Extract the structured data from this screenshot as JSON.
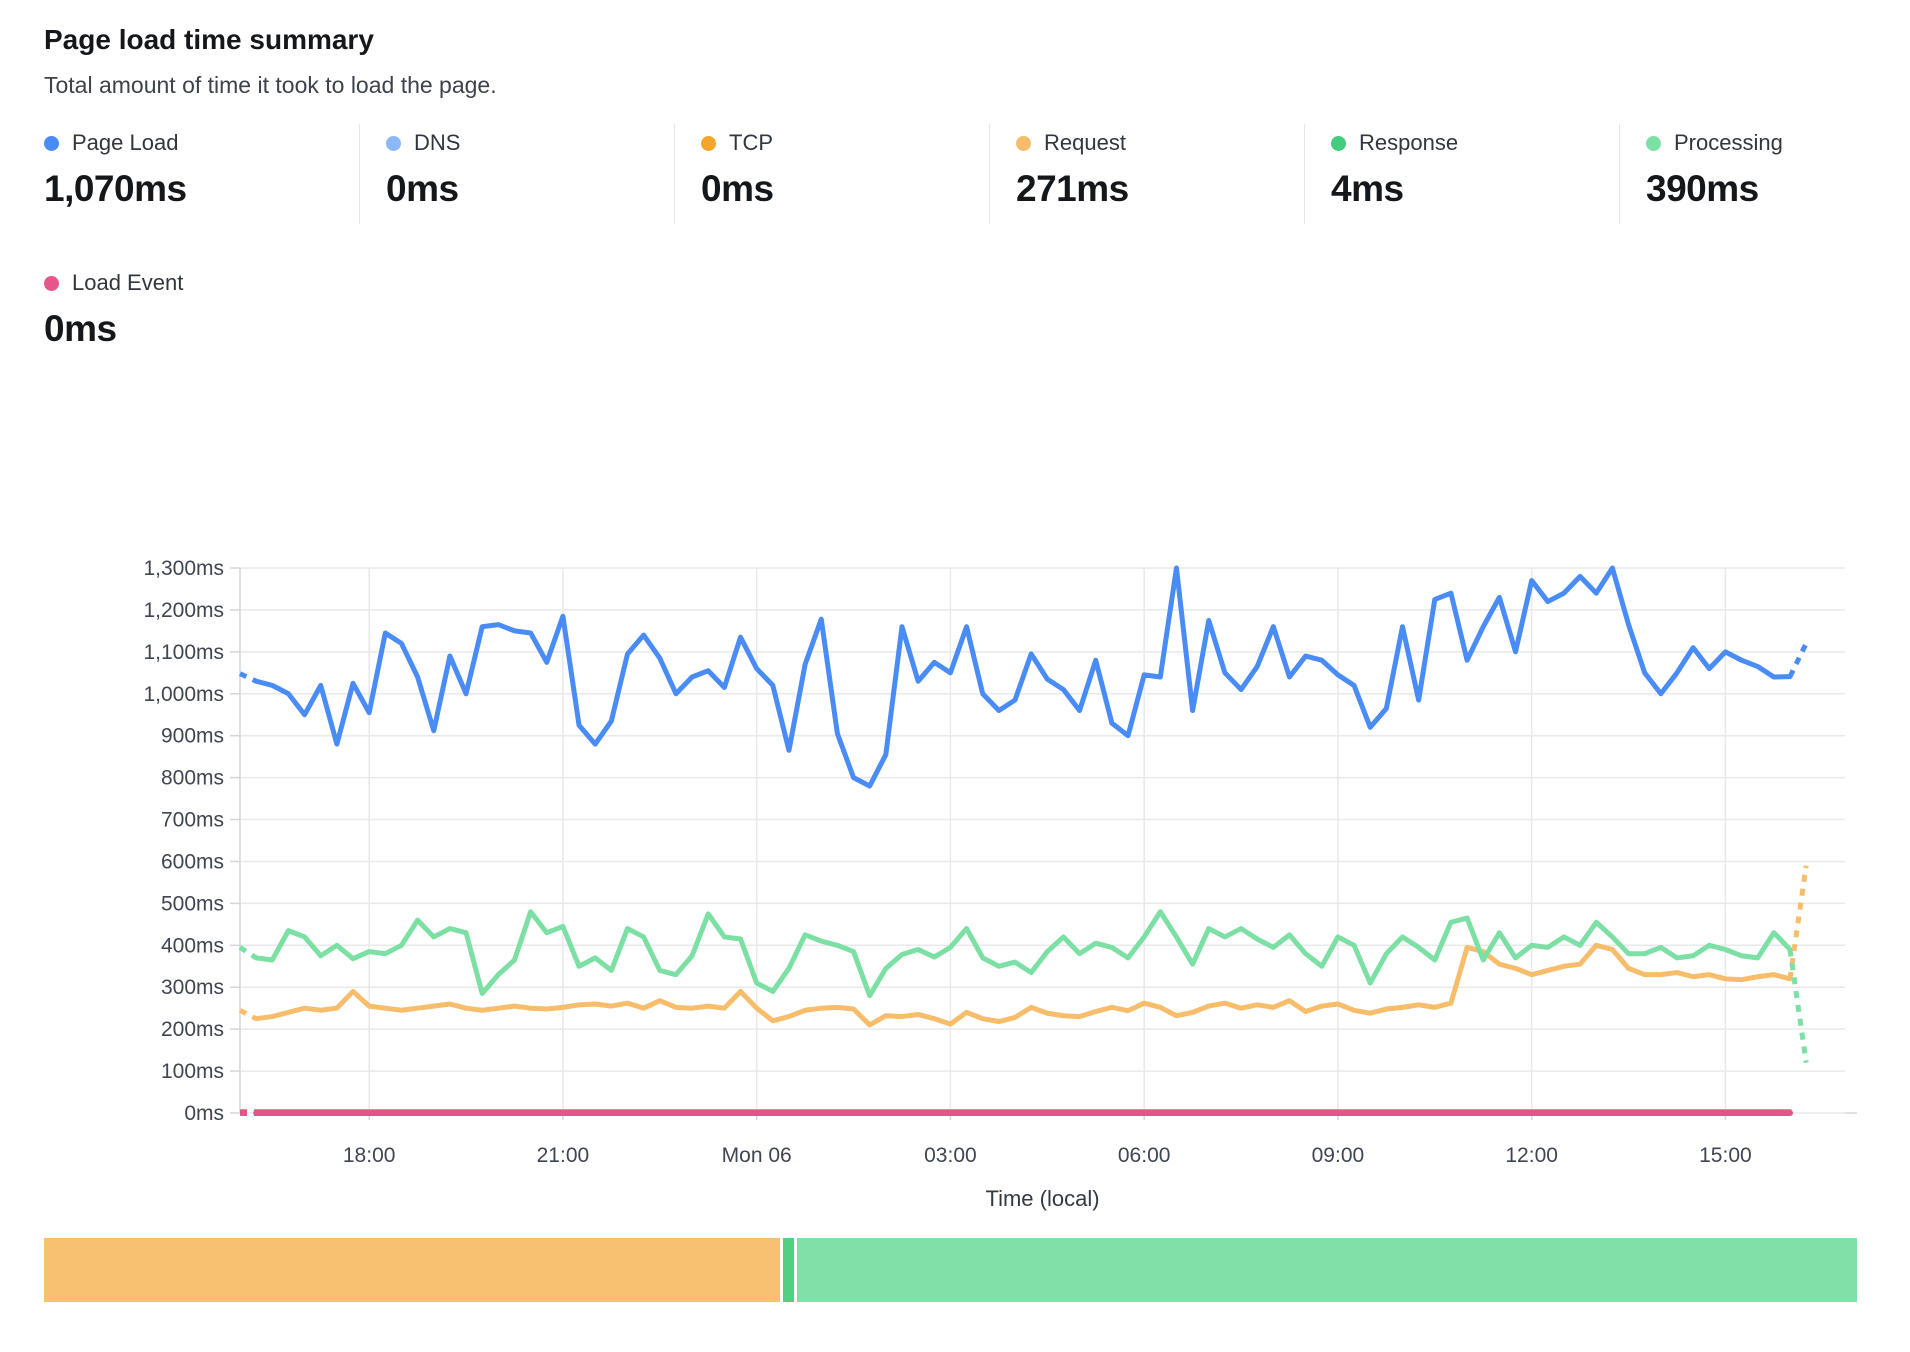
{
  "header": {
    "title": "Page load time summary",
    "subtitle": "Total amount of time it took to load the page."
  },
  "metrics": [
    {
      "label": "Page Load",
      "value": "1,070ms",
      "color": "#4a8cf5"
    },
    {
      "label": "DNS",
      "value": "0ms",
      "color": "#8bb8f8"
    },
    {
      "label": "TCP",
      "value": "0ms",
      "color": "#f4a62a"
    },
    {
      "label": "Request",
      "value": "271ms",
      "color": "#f7bd6b"
    },
    {
      "label": "Response",
      "value": "4ms",
      "color": "#41cd7d"
    },
    {
      "label": "Processing",
      "value": "390ms",
      "color": "#7cdfa4"
    },
    {
      "label": "Load Event",
      "value": "0ms",
      "color": "#e8548c"
    }
  ],
  "chart_data": {
    "type": "line",
    "xlabel": "Time (local)",
    "ylim": [
      0,
      1300
    ],
    "grid": true,
    "legend_position": "none",
    "y_ticks": [
      {
        "value": 0,
        "label": "0ms"
      },
      {
        "value": 100,
        "label": "100ms"
      },
      {
        "value": 200,
        "label": "200ms"
      },
      {
        "value": 300,
        "label": "300ms"
      },
      {
        "value": 400,
        "label": "400ms"
      },
      {
        "value": 500,
        "label": "500ms"
      },
      {
        "value": 600,
        "label": "600ms"
      },
      {
        "value": 700,
        "label": "700ms"
      },
      {
        "value": 800,
        "label": "800ms"
      },
      {
        "value": 900,
        "label": "900ms"
      },
      {
        "value": 1000,
        "label": "1,000ms"
      },
      {
        "value": 1100,
        "label": "1,100ms"
      },
      {
        "value": 1200,
        "label": "1,200ms"
      },
      {
        "value": 1300,
        "label": "1,300ms"
      }
    ],
    "x_ticks": [
      {
        "index": 8,
        "label": "18:00"
      },
      {
        "index": 20,
        "label": "21:00"
      },
      {
        "index": 32,
        "label": "Mon 06"
      },
      {
        "index": 44,
        "label": "03:00"
      },
      {
        "index": 56,
        "label": "06:00"
      },
      {
        "index": 68,
        "label": "09:00"
      },
      {
        "index": 80,
        "label": "12:00"
      },
      {
        "index": 92,
        "label": "15:00"
      }
    ],
    "points_interval_minutes": 15,
    "series": [
      {
        "name": "Page Load",
        "color": "#4a8cf5",
        "width": 5,
        "dash_first": true,
        "dash_last": true,
        "values": [
          1048,
          1030,
          1020,
          1000,
          950,
          1020,
          880,
          1025,
          955,
          1145,
          1120,
          1040,
          912,
          1090,
          1000,
          1160,
          1165,
          1150,
          1145,
          1075,
          1185,
          925,
          880,
          935,
          1095,
          1140,
          1085,
          1000,
          1040,
          1055,
          1015,
          1135,
          1060,
          1020,
          865,
          1070,
          1178,
          905,
          800,
          780,
          855,
          1160,
          1030,
          1075,
          1050,
          1160,
          1000,
          960,
          985,
          1095,
          1035,
          1010,
          960,
          1080,
          930,
          900,
          1045,
          1040,
          1300,
          960,
          1175,
          1050,
          1010,
          1065,
          1160,
          1040,
          1090,
          1080,
          1045,
          1020,
          920,
          965,
          1160,
          985,
          1225,
          1240,
          1080,
          1160,
          1230,
          1100,
          1270,
          1220,
          1240,
          1280,
          1240,
          1300,
          1165,
          1050,
          1000,
          1050,
          1110,
          1060,
          1100,
          1080,
          1065,
          1040,
          1041,
          1120
        ]
      },
      {
        "name": "DNS",
        "color": "#8bb8f8",
        "width": 3,
        "dash_first": true,
        "dash_last": false,
        "flat": 0,
        "count": 97
      },
      {
        "name": "TCP",
        "color": "#f4a62a",
        "width": 3,
        "dash_first": true,
        "dash_last": false,
        "flat": 0,
        "count": 97
      },
      {
        "name": "Request",
        "color": "#f7bd6b",
        "width": 5,
        "dash_first": true,
        "dash_last": true,
        "values": [
          245,
          225,
          230,
          240,
          250,
          245,
          250,
          290,
          255,
          250,
          245,
          250,
          255,
          260,
          250,
          245,
          250,
          255,
          250,
          248,
          252,
          258,
          260,
          255,
          262,
          250,
          268,
          252,
          250,
          255,
          250,
          290,
          250,
          220,
          230,
          245,
          250,
          252,
          248,
          210,
          232,
          230,
          235,
          225,
          212,
          240,
          225,
          218,
          228,
          252,
          238,
          232,
          230,
          242,
          252,
          244,
          262,
          252,
          232,
          240,
          255,
          262,
          250,
          258,
          252,
          268,
          242,
          255,
          260,
          245,
          238,
          248,
          252,
          258,
          252,
          262,
          395,
          385,
          355,
          345,
          330,
          340,
          350,
          355,
          400,
          390,
          345,
          330,
          330,
          335,
          325,
          330,
          320,
          318,
          325,
          330,
          320,
          590
        ]
      },
      {
        "name": "Response",
        "color": "#41cd7d",
        "width": 4.5,
        "dash_first": true,
        "dash_last": false,
        "flat": 4,
        "count": 97
      },
      {
        "name": "Processing",
        "color": "#7cdfa4",
        "width": 5,
        "dash_first": true,
        "dash_last": true,
        "values": [
          395,
          370,
          365,
          435,
          420,
          375,
          400,
          368,
          385,
          380,
          400,
          460,
          420,
          440,
          430,
          285,
          330,
          365,
          480,
          430,
          445,
          350,
          370,
          340,
          440,
          420,
          340,
          330,
          375,
          475,
          420,
          415,
          310,
          290,
          345,
          425,
          410,
          400,
          385,
          280,
          345,
          378,
          390,
          372,
          395,
          440,
          370,
          350,
          360,
          335,
          385,
          420,
          380,
          405,
          395,
          370,
          420,
          480,
          420,
          355,
          440,
          420,
          440,
          415,
          395,
          425,
          380,
          350,
          420,
          400,
          310,
          380,
          420,
          395,
          365,
          455,
          465,
          365,
          430,
          370,
          400,
          395,
          420,
          400,
          455,
          420,
          380,
          380,
          395,
          370,
          375,
          400,
          390,
          375,
          370,
          430,
          390,
          120
        ]
      },
      {
        "name": "Load Event",
        "color": "#e2548a",
        "width": 6,
        "dash_first": true,
        "dash_last": false,
        "flat": 0,
        "count": 97
      }
    ]
  },
  "footer_bar": {
    "segments": [
      {
        "name": "Request",
        "value": 271,
        "color": "#f8c172"
      },
      {
        "name": "Response",
        "value": 4,
        "color": "#4fd184"
      },
      {
        "name": "Processing",
        "value": 390,
        "color": "#80e0a7"
      }
    ]
  }
}
